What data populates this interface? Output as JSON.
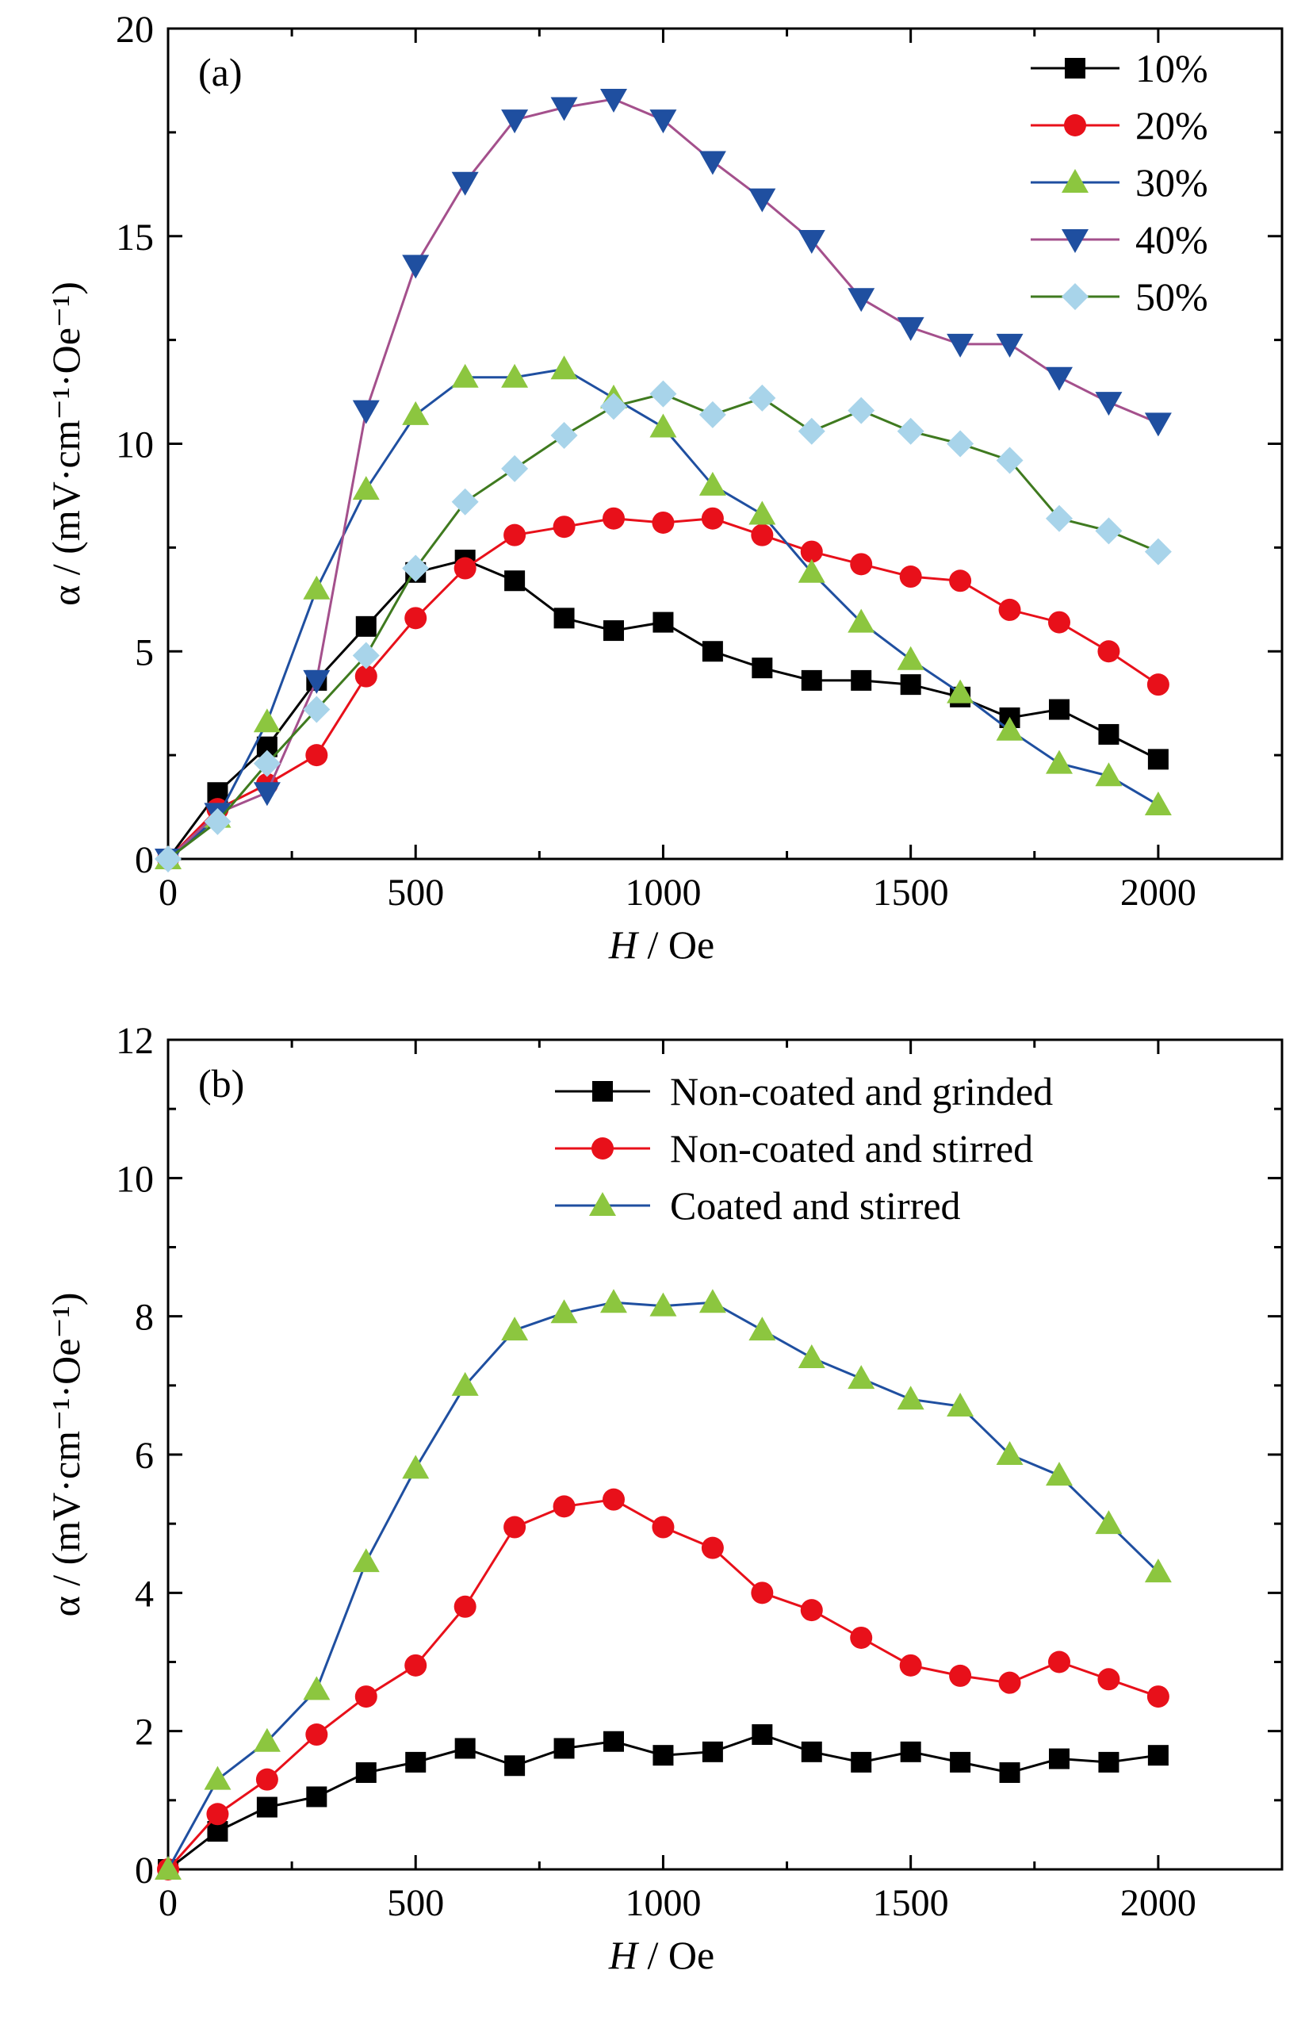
{
  "chart_data": [
    {
      "type": "line",
      "panel_label": "(a)",
      "xlabel_var": "H",
      "xlabel_unit": " / Oe",
      "ylabel": "α / (mV·cm⁻¹·Oe⁻¹)",
      "xlim": [
        0,
        2250
      ],
      "ylim": [
        0,
        20
      ],
      "xticks": [
        0,
        500,
        1000,
        1500,
        2000
      ],
      "yticks": [
        0,
        5,
        10,
        15,
        20
      ],
      "legend_position": "top-right",
      "x": [
        0,
        100,
        200,
        300,
        400,
        500,
        600,
        700,
        800,
        900,
        1000,
        1100,
        1200,
        1300,
        1400,
        1500,
        1600,
        1700,
        1800,
        1900,
        2000
      ],
      "series": [
        {
          "name": "10%",
          "marker": "square",
          "color": "#000000",
          "line_color": "#000000",
          "values": [
            0,
            1.6,
            2.7,
            4.3,
            5.6,
            6.9,
            7.2,
            6.7,
            5.8,
            5.5,
            5.7,
            5.0,
            4.6,
            4.3,
            4.3,
            4.2,
            3.9,
            3.4,
            3.6,
            3.0,
            2.4
          ]
        },
        {
          "name": "20%",
          "marker": "circle",
          "color": "#e8101a",
          "line_color": "#e8101a",
          "values": [
            0,
            1.2,
            1.8,
            2.5,
            4.4,
            5.8,
            7.0,
            7.8,
            8.0,
            8.2,
            8.1,
            8.2,
            7.8,
            7.4,
            7.1,
            6.8,
            6.7,
            6.0,
            5.7,
            5.0,
            4.2
          ]
        },
        {
          "name": "30%",
          "marker": "triangle-up",
          "color": "#8cc63f",
          "line_color": "#1f4fa0",
          "values": [
            0,
            1.0,
            3.3,
            6.5,
            8.9,
            10.7,
            11.6,
            11.6,
            11.8,
            11.1,
            10.4,
            9.0,
            8.3,
            6.9,
            5.7,
            4.8,
            4.0,
            3.1,
            2.3,
            2.0,
            1.3
          ]
        },
        {
          "name": "40%",
          "marker": "triangle-down",
          "color": "#1f4fa0",
          "line_color": "#a4508c",
          "values": [
            0,
            1.1,
            1.6,
            4.3,
            10.8,
            14.3,
            16.3,
            17.8,
            18.1,
            18.3,
            17.8,
            16.8,
            15.9,
            14.9,
            13.5,
            12.8,
            12.4,
            12.4,
            11.6,
            11.0,
            10.5
          ]
        },
        {
          "name": "50%",
          "marker": "diamond",
          "color": "#a8d4ea",
          "line_color": "#3f7a1f",
          "values": [
            0,
            0.9,
            2.3,
            3.6,
            4.9,
            7.0,
            8.6,
            9.4,
            10.2,
            10.9,
            11.2,
            10.7,
            11.1,
            10.3,
            10.8,
            10.3,
            10.0,
            9.6,
            8.2,
            7.9,
            7.4
          ]
        }
      ]
    },
    {
      "type": "line",
      "panel_label": "(b)",
      "xlabel_var": "H",
      "xlabel_unit": " / Oe",
      "ylabel": "α / (mV·cm⁻¹·Oe⁻¹)",
      "xlim": [
        0,
        2250
      ],
      "ylim": [
        0,
        12
      ],
      "xticks": [
        0,
        500,
        1000,
        1500,
        2000
      ],
      "yticks": [
        0,
        2,
        4,
        6,
        8,
        10,
        12
      ],
      "legend_position": "top-right",
      "x": [
        0,
        100,
        200,
        300,
        400,
        500,
        600,
        700,
        800,
        900,
        1000,
        1100,
        1200,
        1300,
        1400,
        1500,
        1600,
        1700,
        1800,
        1900,
        2000
      ],
      "series": [
        {
          "name": "Non-coated and grinded",
          "marker": "square",
          "color": "#000000",
          "line_color": "#000000",
          "values": [
            0,
            0.55,
            0.9,
            1.05,
            1.4,
            1.55,
            1.75,
            1.5,
            1.75,
            1.85,
            1.65,
            1.7,
            1.95,
            1.7,
            1.55,
            1.7,
            1.55,
            1.4,
            1.6,
            1.55,
            1.65
          ]
        },
        {
          "name": "Non-coated and stirred",
          "marker": "circle",
          "color": "#e8101a",
          "line_color": "#e8101a",
          "values": [
            0,
            0.8,
            1.3,
            1.95,
            2.5,
            2.95,
            3.8,
            4.95,
            5.25,
            5.35,
            4.95,
            4.65,
            4.0,
            3.75,
            3.35,
            2.95,
            2.8,
            2.7,
            3.0,
            2.75,
            2.5
          ]
        },
        {
          "name": "Coated and stirred",
          "marker": "triangle-up",
          "color": "#8cc63f",
          "line_color": "#1f4fa0",
          "values": [
            0,
            1.3,
            1.85,
            2.6,
            4.45,
            5.8,
            7.0,
            7.8,
            8.05,
            8.2,
            8.15,
            8.2,
            7.8,
            7.4,
            7.1,
            6.8,
            6.7,
            6.0,
            5.7,
            5.0,
            4.3
          ]
        }
      ]
    }
  ]
}
